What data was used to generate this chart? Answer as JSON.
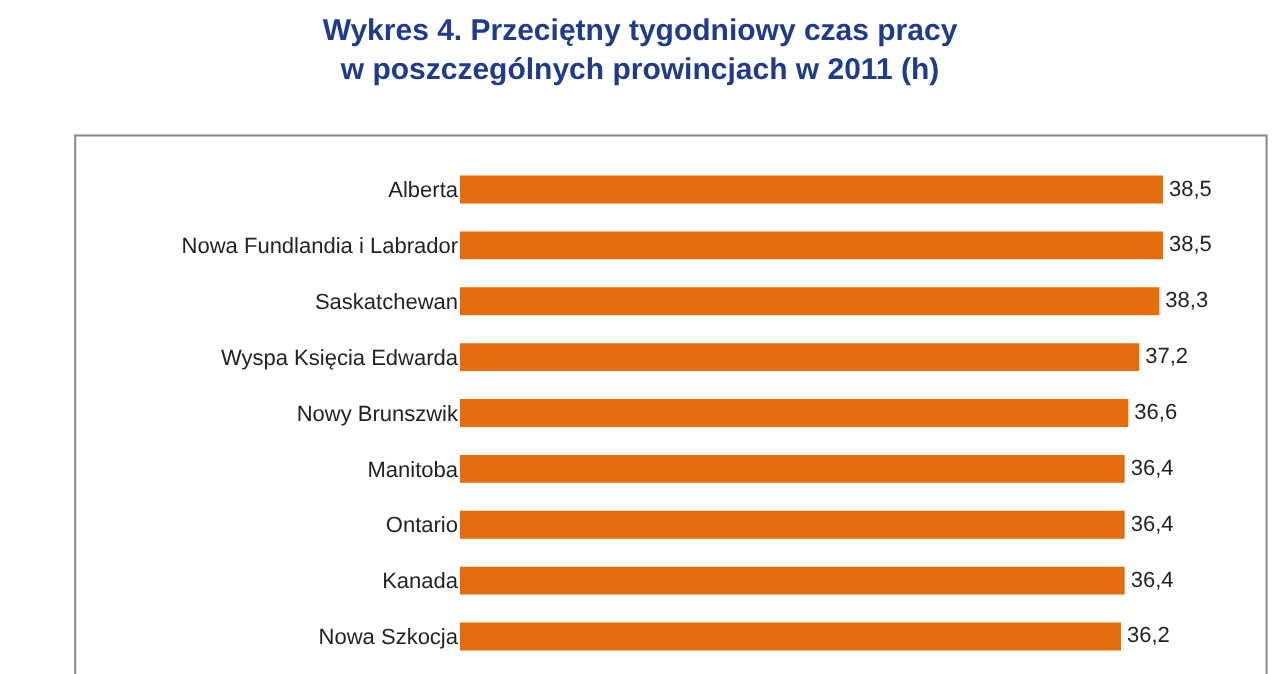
{
  "chart_data": {
    "type": "bar",
    "orientation": "horizontal",
    "title": "Wykres 4. Przeciętny tygodniowy czas pracy\nw poszczególnych prowincjach w 2011 (h)",
    "categories": [
      "Alberta",
      "Nowa Fundlandia i Labrador",
      "Saskatchewan",
      "Wyspa Księcia Edwarda",
      "Nowy Brunszwik",
      "Manitoba",
      "Ontario",
      "Kanada",
      "Nowa Szkocja"
    ],
    "values": [
      38.5,
      38.5,
      38.3,
      37.2,
      36.6,
      36.4,
      36.4,
      36.4,
      36.2
    ],
    "value_labels": [
      "38,5",
      "38,5",
      "38,3",
      "37,2",
      "36,6",
      "36,4",
      "36,4",
      "36,4",
      "36,2"
    ],
    "color": "#e46c0a",
    "tick_labels": "y",
    "grid": false,
    "legend": false
  }
}
